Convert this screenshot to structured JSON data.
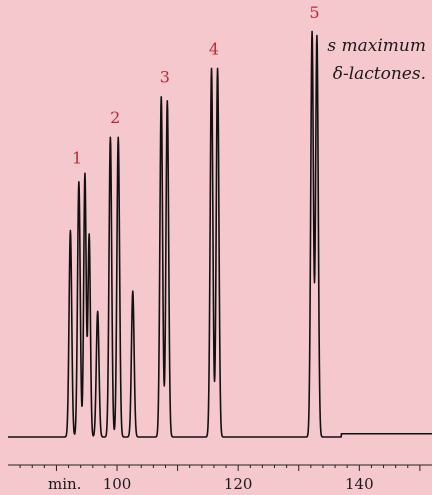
{
  "caption": {
    "line1": "s maximum",
    "line2": "δ-lactones."
  },
  "chart_data": {
    "type": "line",
    "title": "",
    "xlabel": "",
    "ylabel": "",
    "x_unit_label": "min.",
    "xlim": [
      82,
      152
    ],
    "ylim": [
      0,
      1
    ],
    "x_ticks": [
      100,
      120,
      140
    ],
    "tick_labels": [
      "100",
      "120",
      "140"
    ],
    "grid": false,
    "baseline": 0.0,
    "peaks": [
      {
        "x": 92.3,
        "y": 0.51,
        "w": 0.22
      },
      {
        "x": 93.7,
        "y": 0.63,
        "w": 0.22
      },
      {
        "x": 94.7,
        "y": 0.65,
        "w": 0.2
      },
      {
        "x": 95.4,
        "y": 0.5,
        "w": 0.2
      },
      {
        "x": 96.8,
        "y": 0.31,
        "w": 0.22
      },
      {
        "x": 98.9,
        "y": 0.74,
        "w": 0.22
      },
      {
        "x": 100.2,
        "y": 0.74,
        "w": 0.22
      },
      {
        "x": 102.6,
        "y": 0.36,
        "w": 0.22
      },
      {
        "x": 107.3,
        "y": 0.84,
        "w": 0.22
      },
      {
        "x": 108.3,
        "y": 0.83,
        "w": 0.22
      },
      {
        "x": 115.6,
        "y": 0.91,
        "w": 0.22
      },
      {
        "x": 116.6,
        "y": 0.91,
        "w": 0.22
      },
      {
        "x": 132.2,
        "y": 1.0,
        "w": 0.22
      },
      {
        "x": 133.0,
        "y": 0.99,
        "w": 0.22
      }
    ],
    "annotations": [
      {
        "label": "1",
        "x": 93.4,
        "y": 0.67
      },
      {
        "label": "2",
        "x": 99.7,
        "y": 0.77
      },
      {
        "label": "3",
        "x": 107.9,
        "y": 0.87
      },
      {
        "label": "4",
        "x": 116.0,
        "y": 0.94
      },
      {
        "label": "5",
        "x": 132.6,
        "y": 1.03
      }
    ]
  }
}
